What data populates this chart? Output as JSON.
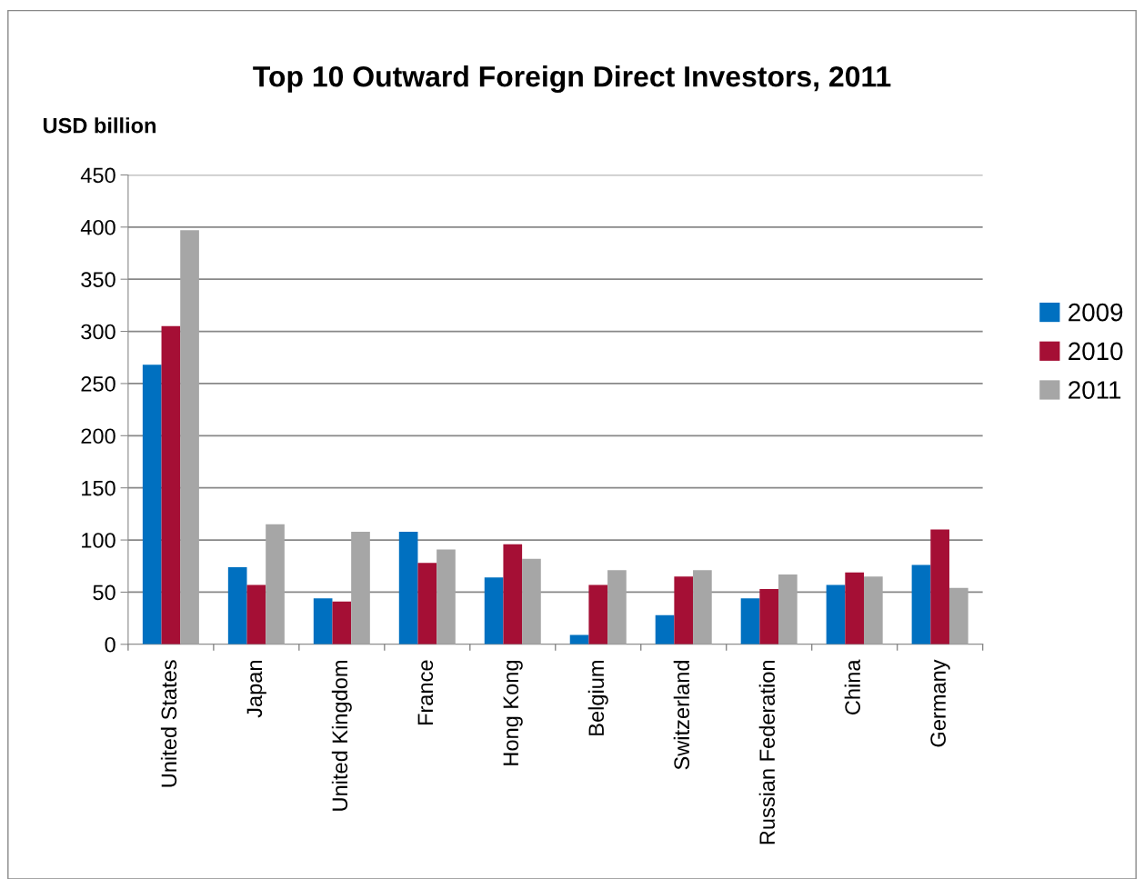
{
  "chart_data": {
    "type": "bar",
    "title": "Top 10 Outward Foreign Direct Investors, 2011",
    "ylabel": "USD billion",
    "categories": [
      "United States",
      "Japan",
      "United Kingdom",
      "France",
      "Hong Kong",
      "Belgium",
      "Switzerland",
      "Russian Federation",
      "China",
      "Germany"
    ],
    "series": [
      {
        "name": "2009",
        "color": "#0070c0",
        "values": [
          268,
          74,
          44,
          108,
          64,
          9,
          28,
          44,
          57,
          76
        ]
      },
      {
        "name": "2010",
        "color": "#a50f35",
        "values": [
          305,
          57,
          41,
          78,
          96,
          57,
          65,
          53,
          69,
          110
        ]
      },
      {
        "name": "2011",
        "color": "#a6a6a6",
        "values": [
          397,
          115,
          108,
          91,
          82,
          71,
          71,
          67,
          65,
          54
        ]
      }
    ],
    "ylim": [
      0,
      450
    ],
    "yticks": [
      0,
      50,
      100,
      150,
      200,
      250,
      300,
      350,
      400,
      450
    ],
    "grid": "y",
    "legend": "right"
  }
}
